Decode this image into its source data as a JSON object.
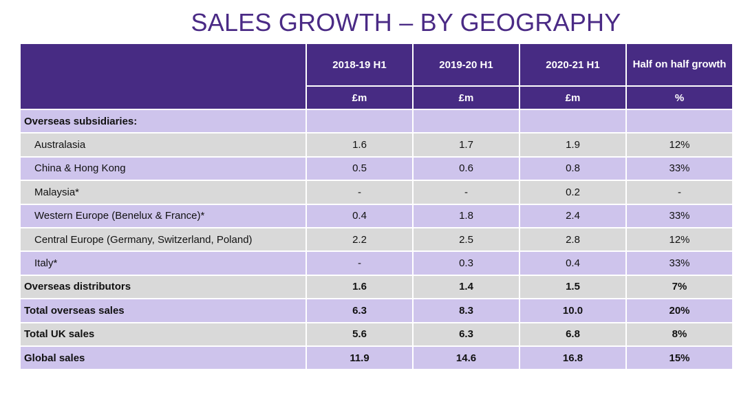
{
  "title": "SALES GROWTH – BY GEOGRAPHY",
  "colors": {
    "header_bg": "#472b83",
    "title": "#4a2a85",
    "row_purple": "#cec4ec",
    "row_grey": "#d9d9d9"
  },
  "columns": [
    {
      "label": "2018-19 H1",
      "unit": "£m"
    },
    {
      "label": "2019-20 H1",
      "unit": "£m"
    },
    {
      "label": "2020-21 H1",
      "unit": "£m"
    },
    {
      "label": "Half on half growth",
      "unit": "%"
    }
  ],
  "rows": [
    {
      "label": "Overseas subsidiaries:",
      "values": [
        "",
        "",
        "",
        ""
      ]
    },
    {
      "label": "Australasia",
      "values": [
        "1.6",
        "1.7",
        "1.9",
        "12%"
      ]
    },
    {
      "label": "China & Hong Kong",
      "values": [
        "0.5",
        "0.6",
        "0.8",
        "33%"
      ]
    },
    {
      "label": "Malaysia*",
      "values": [
        "-",
        "-",
        "0.2",
        "-"
      ]
    },
    {
      "label": "Western Europe (Benelux & France)*",
      "values": [
        "0.4",
        "1.8",
        "2.4",
        "33%"
      ]
    },
    {
      "label": "Central Europe (Germany, Switzerland, Poland)",
      "values": [
        "2.2",
        "2.5",
        "2.8",
        "12%"
      ]
    },
    {
      "label": "Italy*",
      "values": [
        "-",
        "0.3",
        "0.4",
        "33%"
      ]
    },
    {
      "label": "Overseas distributors",
      "values": [
        "1.6",
        "1.4",
        "1.5",
        "7%"
      ]
    },
    {
      "label": "Total overseas sales",
      "values": [
        "6.3",
        "8.3",
        "10.0",
        "20%"
      ]
    },
    {
      "label": "Total UK sales",
      "values": [
        "5.6",
        "6.3",
        "6.8",
        "8%"
      ]
    },
    {
      "label": "Global sales",
      "values": [
        "11.9",
        "14.6",
        "16.8",
        "15%"
      ]
    }
  ]
}
